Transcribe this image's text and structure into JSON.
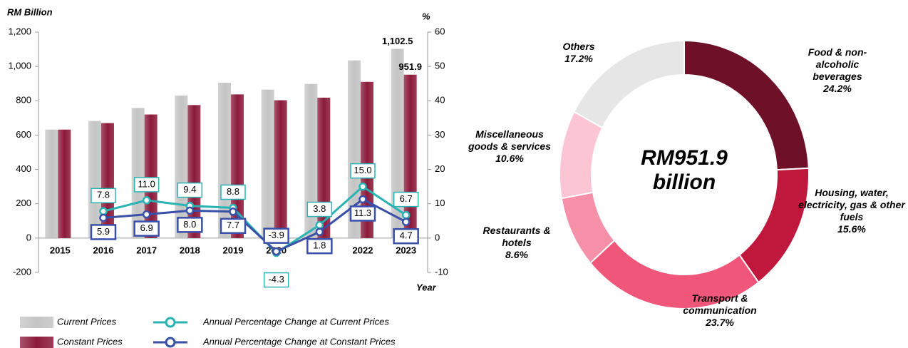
{
  "chart_data": [
    {
      "type": "bar",
      "y_label": "RM Billion",
      "y2_label": "%",
      "x_label": "Year",
      "categories": [
        "2015",
        "2016",
        "2017",
        "2018",
        "2019",
        "2020",
        "2021",
        "2022",
        "2023"
      ],
      "series": [
        {
          "name": "Current Prices",
          "color": "#c4c4c4",
          "values": [
            632,
            682,
            758,
            830,
            905,
            865,
            898,
            1035,
            1102.5
          ],
          "value_labels": [
            null,
            null,
            null,
            null,
            null,
            null,
            null,
            null,
            "1,102.5"
          ]
        },
        {
          "name": "Constant Prices",
          "color": "#8b1a3a",
          "values": [
            632,
            670,
            720,
            775,
            837,
            803,
            818,
            910,
            951.9
          ],
          "value_labels": [
            null,
            null,
            null,
            null,
            null,
            null,
            null,
            null,
            "951.9"
          ]
        },
        {
          "name": "Annual Percentage Change at Current Prices",
          "type": "line",
          "axis": "y2",
          "color": "#2ab3b3",
          "values": [
            null,
            7.8,
            11.0,
            9.4,
            8.8,
            -4.3,
            3.8,
            15.0,
            6.7
          ],
          "value_labels": [
            null,
            "7.8",
            "11.0",
            "9.4",
            "8.8",
            "-4.3",
            "3.8",
            "15.0",
            "6.7"
          ]
        },
        {
          "name": "Annual Percentage Change at Constant Prices",
          "type": "line",
          "axis": "y2",
          "color": "#3a4fa8",
          "values": [
            null,
            5.9,
            6.9,
            8.0,
            7.7,
            -3.9,
            1.8,
            11.3,
            4.7
          ],
          "value_labels": [
            null,
            "5.9",
            "6.9",
            "8.0",
            "7.7",
            "-3.9",
            "1.8",
            "11.3",
            "4.7"
          ]
        }
      ],
      "ylim": [
        -200,
        1200
      ],
      "yticks": [
        -200,
        0,
        200,
        400,
        600,
        800,
        {
          "value": 1000,
          "label": "1,000"
        },
        {
          "value": 1200,
          "label": "1,200"
        }
      ],
      "y2lim": [
        -10,
        60
      ],
      "y2ticks": [
        -10,
        0,
        10,
        20,
        30,
        40,
        50,
        60
      ]
    },
    {
      "type": "pie",
      "donut": true,
      "center_label": "RM951.9 billion",
      "categories": [
        "Food & non-alcoholic beverages",
        "Housing, water, electricity, gas & other fuels",
        "Transport & communication",
        "Restaurants & hotels",
        "Miscellaneous goods & services",
        "Others"
      ],
      "values": [
        24.2,
        15.6,
        23.7,
        8.6,
        10.6,
        17.2
      ],
      "value_labels": [
        "24.2%",
        "15.6%",
        "23.7%",
        "8.6%",
        "10.6%",
        "17.2%"
      ],
      "colors": [
        "#6e1028",
        "#c0173c",
        "#f0567a",
        "#f590a8",
        "#fbc5d3",
        "#e6e6e6"
      ]
    }
  ]
}
